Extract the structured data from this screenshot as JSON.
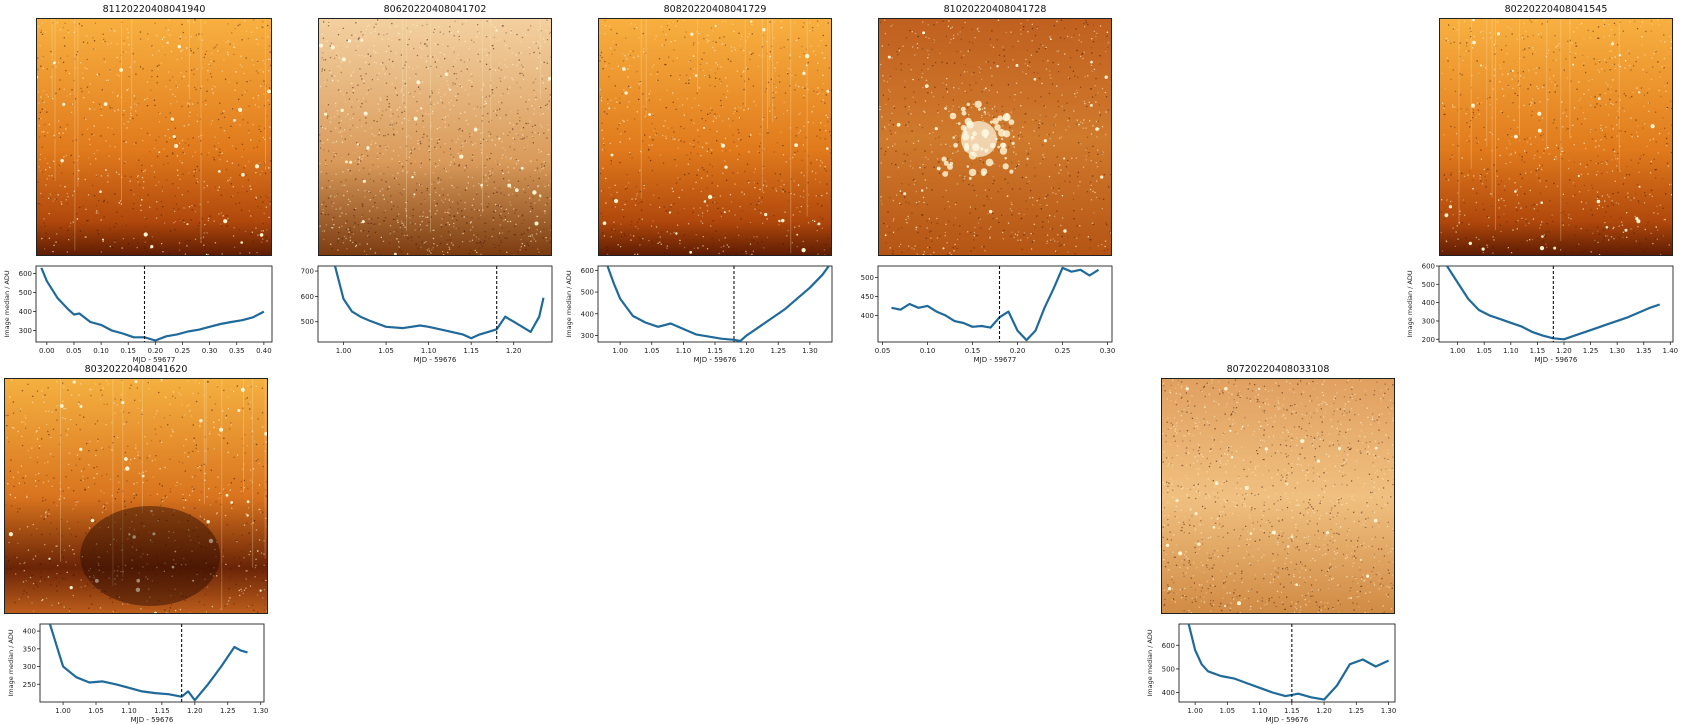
{
  "colors": {
    "line": "#1f6a9a",
    "vline": "#111111",
    "axis": "#222222",
    "img_dark": "#3a1000",
    "img_mid": "#c2540e",
    "img_bright": "#f4a23c",
    "img_hot": "#fff4d0"
  },
  "chart_data": [
    {
      "type": "line",
      "title": "81120220408041940",
      "xlabel": "MJD - 59677",
      "ylabel": "Image median / ADU",
      "xlim": [
        -0.02,
        0.415
      ],
      "ylim": [
        240,
        640
      ],
      "xticks": [
        "0.00",
        "0.05",
        "0.10",
        "0.15",
        "0.20",
        "0.25",
        "0.30",
        "0.35",
        "0.40"
      ],
      "yticks": [
        "300",
        "400",
        "500",
        "600"
      ],
      "marker_x": 0.18,
      "x": [
        -0.01,
        0.0,
        0.02,
        0.04,
        0.05,
        0.06,
        0.08,
        0.1,
        0.12,
        0.14,
        0.16,
        0.18,
        0.2,
        0.22,
        0.24,
        0.26,
        0.28,
        0.3,
        0.32,
        0.34,
        0.36,
        0.38,
        0.4
      ],
      "y": [
        630,
        560,
        470,
        410,
        385,
        390,
        345,
        330,
        300,
        285,
        265,
        265,
        248,
        270,
        280,
        295,
        305,
        320,
        335,
        345,
        355,
        370,
        400
      ],
      "image": {
        "style": "bright",
        "seed": 11
      }
    },
    {
      "type": "line",
      "title": "80620220408041702",
      "xlabel": "MJD - 59676",
      "ylabel": "",
      "xlim": [
        0.97,
        1.245
      ],
      "ylim": [
        420,
        720
      ],
      "xticks": [
        "1.00",
        "1.05",
        "1.10",
        "1.15",
        "1.20"
      ],
      "yticks": [
        "500",
        "600",
        "700"
      ],
      "marker_x": 1.18,
      "x": [
        0.99,
        1.0,
        1.01,
        1.02,
        1.03,
        1.05,
        1.07,
        1.09,
        1.1,
        1.12,
        1.14,
        1.15,
        1.16,
        1.17,
        1.18,
        1.19,
        1.2,
        1.21,
        1.22,
        1.23,
        1.235
      ],
      "y": [
        720,
        590,
        540,
        520,
        505,
        480,
        475,
        485,
        480,
        465,
        450,
        435,
        450,
        460,
        470,
        520,
        500,
        480,
        460,
        520,
        595
      ],
      "image": {
        "style": "noisy",
        "seed": 22
      }
    },
    {
      "type": "line",
      "title": "80820220408041729",
      "xlabel": "MJD - 59676",
      "ylabel": "Image median / ADU",
      "xlim": [
        0.965,
        1.335
      ],
      "ylim": [
        270,
        620
      ],
      "xticks": [
        "1.00",
        "1.05",
        "1.10",
        "1.15",
        "1.20",
        "1.25",
        "1.30"
      ],
      "yticks": [
        "300",
        "400",
        "500",
        "600"
      ],
      "marker_x": 1.18,
      "x": [
        0.98,
        0.99,
        1.0,
        1.02,
        1.04,
        1.06,
        1.08,
        1.1,
        1.12,
        1.14,
        1.16,
        1.18,
        1.19,
        1.2,
        1.22,
        1.24,
        1.26,
        1.28,
        1.3,
        1.32,
        1.33
      ],
      "y": [
        620,
        540,
        470,
        390,
        360,
        340,
        355,
        330,
        305,
        295,
        285,
        280,
        275,
        300,
        340,
        380,
        420,
        470,
        520,
        580,
        620
      ],
      "image": {
        "style": "bright",
        "seed": 33
      }
    },
    {
      "type": "line",
      "title": "81020220408041728",
      "xlabel": "MJD - 59677",
      "ylabel": "",
      "xlim": [
        0.045,
        0.305
      ],
      "ylim": [
        330,
        530
      ],
      "xticks": [
        "0.05",
        "0.10",
        "0.15",
        "0.20",
        "0.25",
        "0.30"
      ],
      "yticks": [
        "400",
        "450",
        "500"
      ],
      "marker_x": 0.18,
      "x": [
        0.06,
        0.07,
        0.08,
        0.09,
        0.1,
        0.11,
        0.12,
        0.13,
        0.14,
        0.15,
        0.16,
        0.17,
        0.18,
        0.19,
        0.2,
        0.21,
        0.22,
        0.23,
        0.24,
        0.25,
        0.26,
        0.27,
        0.28,
        0.29
      ],
      "y": [
        420,
        415,
        430,
        420,
        425,
        410,
        400,
        385,
        380,
        370,
        372,
        368,
        395,
        410,
        360,
        335,
        360,
        420,
        470,
        525,
        515,
        520,
        505,
        520
      ],
      "image": {
        "style": "cluster",
        "seed": 44
      }
    },
    {
      "type": "line",
      "title": "80220220408041545",
      "xlabel": "MJD - 59676",
      "ylabel": "Image median / ADU",
      "xlim": [
        0.965,
        1.405
      ],
      "ylim": [
        185,
        600
      ],
      "xticks": [
        "1.00",
        "1.05",
        "1.10",
        "1.15",
        "1.20",
        "1.25",
        "1.30",
        "1.35",
        "1.40"
      ],
      "yticks": [
        "200",
        "300",
        "400",
        "500",
        "600"
      ],
      "marker_x": 1.18,
      "x": [
        0.98,
        1.0,
        1.02,
        1.04,
        1.06,
        1.08,
        1.1,
        1.12,
        1.14,
        1.16,
        1.18,
        1.2,
        1.22,
        1.24,
        1.26,
        1.28,
        1.3,
        1.32,
        1.34,
        1.36,
        1.38
      ],
      "y": [
        600,
        510,
        420,
        360,
        330,
        310,
        290,
        270,
        240,
        220,
        205,
        200,
        220,
        240,
        260,
        280,
        300,
        320,
        345,
        370,
        390
      ],
      "image": {
        "style": "bright",
        "seed": 55
      }
    },
    {
      "type": "line",
      "title": "80320220408041620",
      "xlabel": "MJD - 59676",
      "ylabel": "Image median / ADU",
      "xlim": [
        0.965,
        1.305
      ],
      "ylim": [
        200,
        420
      ],
      "xticks": [
        "1.00",
        "1.05",
        "1.10",
        "1.15",
        "1.20",
        "1.25",
        "1.30"
      ],
      "yticks": [
        "250",
        "300",
        "350",
        "400"
      ],
      "marker_x": 1.18,
      "x": [
        0.98,
        0.99,
        1.0,
        1.02,
        1.04,
        1.06,
        1.08,
        1.1,
        1.12,
        1.14,
        1.16,
        1.18,
        1.19,
        1.2,
        1.22,
        1.24,
        1.26,
        1.27,
        1.28
      ],
      "y": [
        420,
        360,
        300,
        270,
        255,
        258,
        250,
        240,
        230,
        225,
        222,
        215,
        230,
        205,
        250,
        300,
        355,
        345,
        340
      ],
      "image": {
        "style": "dark",
        "seed": 66
      }
    },
    {
      "type": "line",
      "title": "80720220408033108",
      "xlabel": "MJD - 59676",
      "ylabel": "Image median / ADU",
      "xlim": [
        0.975,
        1.31
      ],
      "ylim": [
        360,
        690
      ],
      "xticks": [
        "1.00",
        "1.05",
        "1.10",
        "1.15",
        "1.20",
        "1.25",
        "1.30"
      ],
      "yticks": [
        "400",
        "500",
        "600"
      ],
      "marker_x": 1.15,
      "x": [
        0.99,
        1.0,
        1.01,
        1.02,
        1.04,
        1.06,
        1.08,
        1.1,
        1.12,
        1.14,
        1.15,
        1.16,
        1.18,
        1.2,
        1.22,
        1.24,
        1.26,
        1.28,
        1.3
      ],
      "y": [
        690,
        580,
        520,
        490,
        470,
        460,
        440,
        420,
        400,
        385,
        390,
        395,
        380,
        370,
        430,
        520,
        540,
        510,
        535
      ],
      "image": {
        "style": "diffuse",
        "seed": 77
      }
    }
  ]
}
